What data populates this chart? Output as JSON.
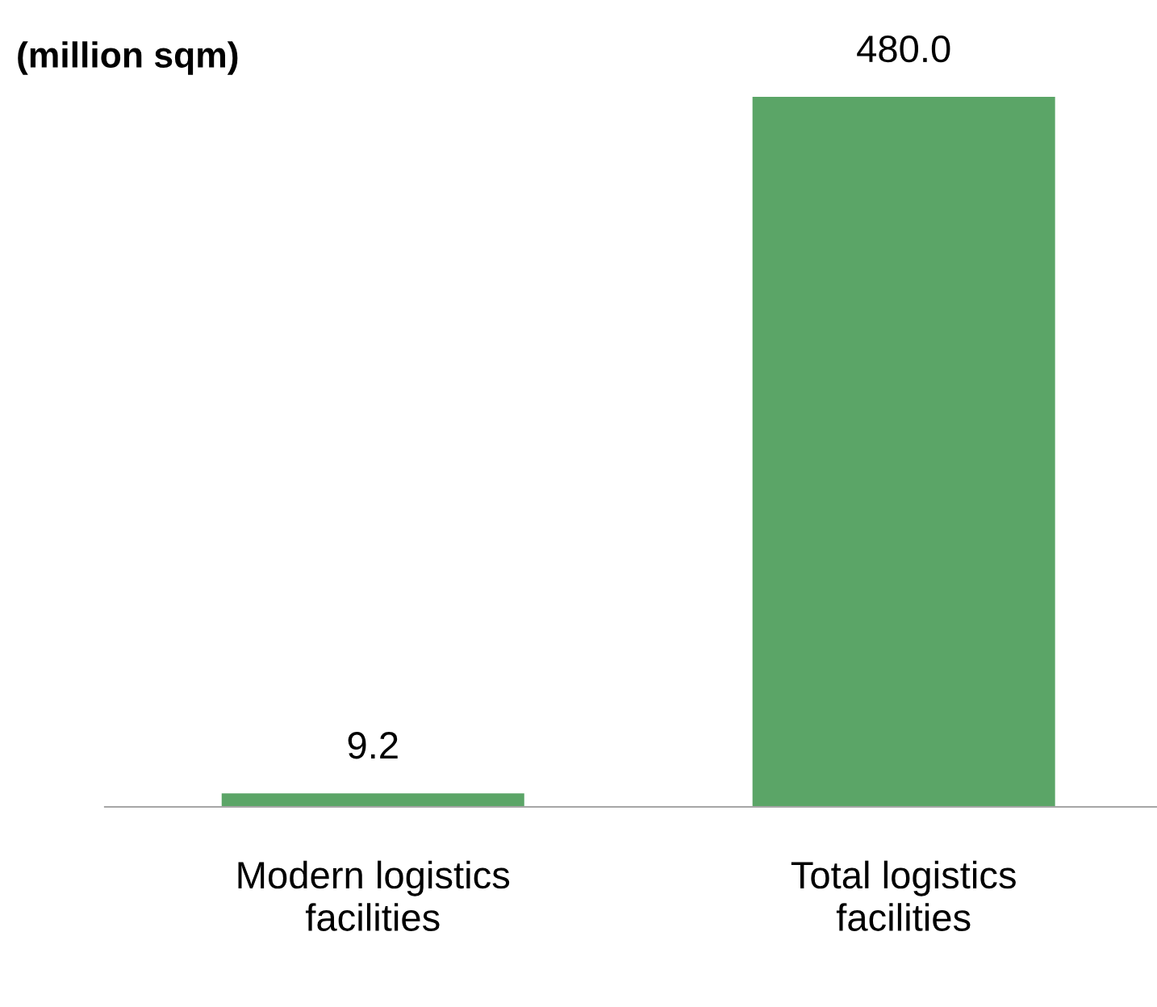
{
  "chart_data": {
    "type": "bar",
    "ylabel": "(million sqm)",
    "categories": [
      "Modern logistics facilities",
      "Total logistics facilities"
    ],
    "values": [
      9.2,
      480.0
    ],
    "color": "#5ba567",
    "value_labels": [
      "9.2",
      "480.0"
    ],
    "grid": false,
    "legend": false
  }
}
